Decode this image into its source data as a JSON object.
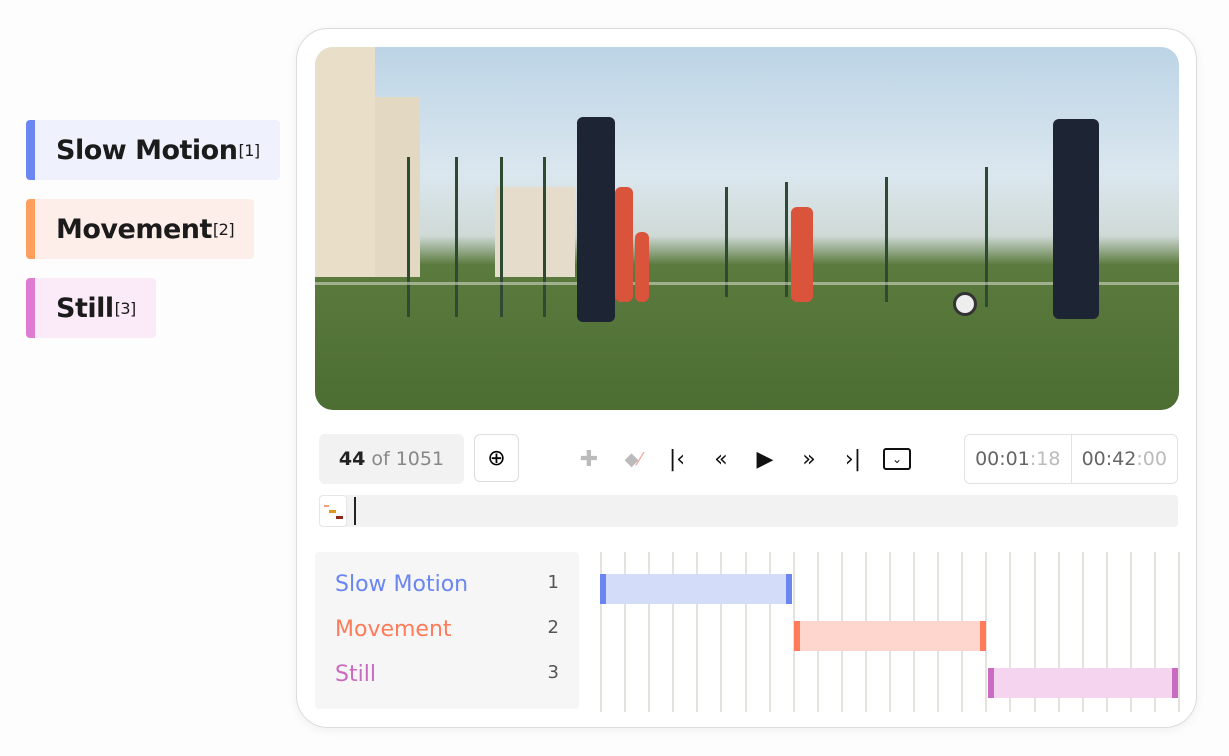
{
  "legend": [
    {
      "label": "Slow Motion",
      "key": "[1]",
      "color": "#6b86f0",
      "bg": "#eff2fd"
    },
    {
      "label": "Movement",
      "key": "[2]",
      "color": "#ff9f5e",
      "bg": "#fdeeea"
    },
    {
      "label": "Still",
      "key": "[3]",
      "color": "#e07bd3",
      "bg": "#fbeaf8"
    }
  ],
  "player": {
    "frame_current": "44",
    "frame_of": "of 1051",
    "icons": {
      "zoom": "zoom-in-icon",
      "add_keyframe": "add-keyframe-icon",
      "remove_keyframe": "remove-keyframe-icon",
      "first": "skip-to-start-icon",
      "prev": "rewind-icon",
      "play": "play-icon",
      "next": "fast-forward-icon",
      "last": "skip-to-end-icon",
      "menu": "dropdown-icon"
    },
    "time_current": "00:01",
    "time_current_frames": ":18",
    "time_total": "00:42",
    "time_total_frames": ":00"
  },
  "timeline": {
    "tracks": [
      {
        "label": "Slow Motion",
        "index": "1",
        "color": "#6b86f0",
        "fill": "#d3dcf9",
        "start": 0,
        "end": 0.333
      },
      {
        "label": "Movement",
        "index": "2",
        "color": "#ff7b5a",
        "fill": "#ffd6cd",
        "start": 0.333,
        "end": 0.667
      },
      {
        "label": "Still",
        "index": "3",
        "color": "#c96bc0",
        "fill": "#f5d4ef",
        "start": 0.667,
        "end": 1
      }
    ],
    "divisions": 24
  }
}
